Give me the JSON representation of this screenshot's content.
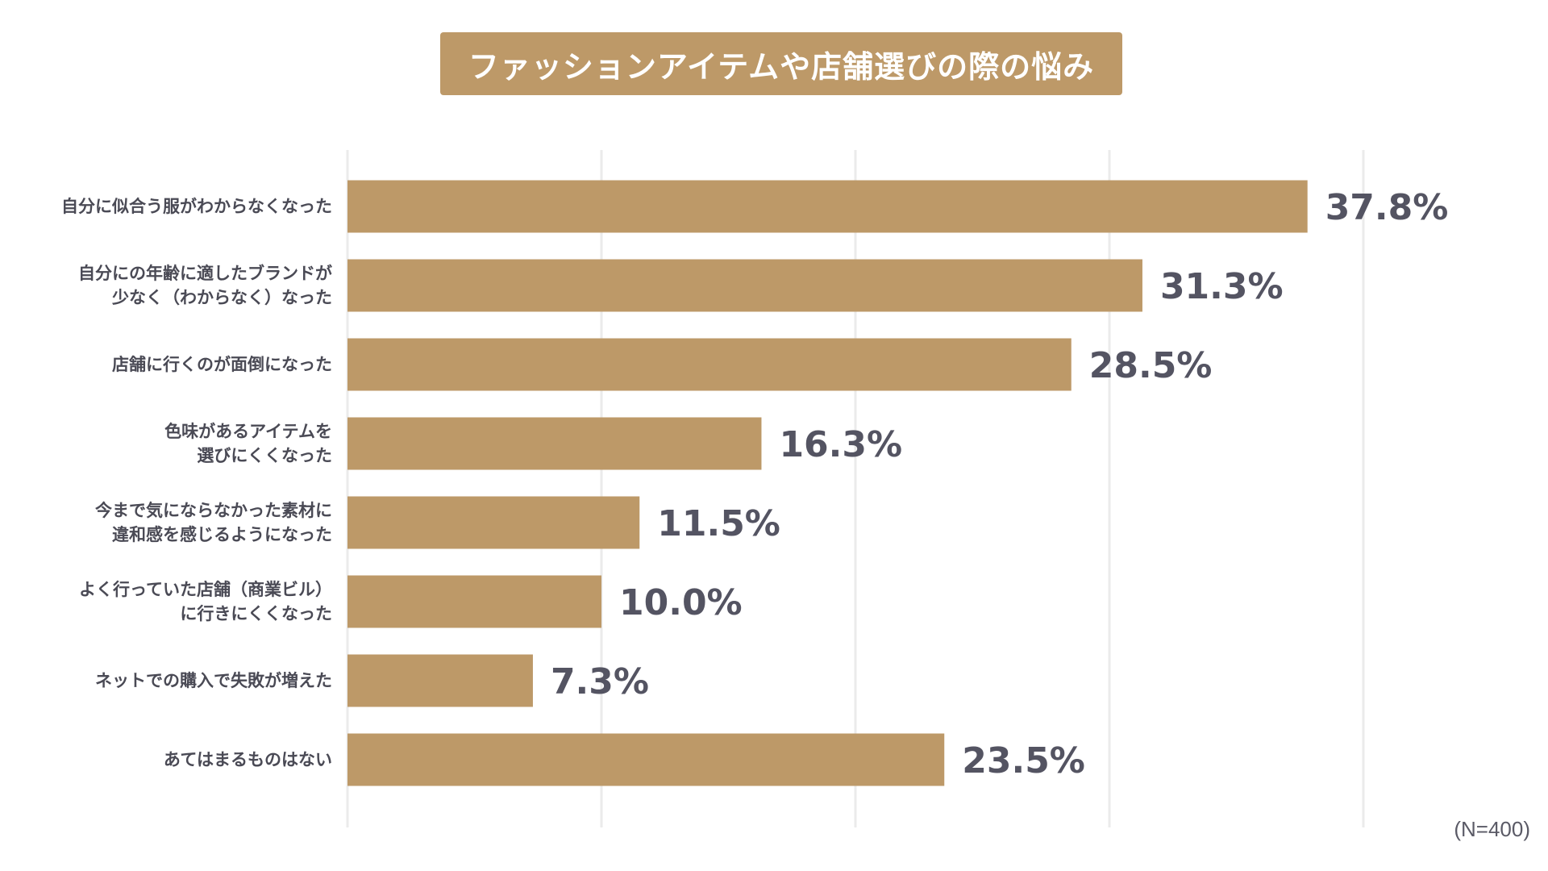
{
  "colors": {
    "bar": "#bd9968",
    "title_bg": "#bd9968",
    "grid": "#ebebeb",
    "label_text": "#4a4a55",
    "value_text": "#545462"
  },
  "chart_data": {
    "type": "bar",
    "orientation": "horizontal",
    "title": "ファッションアイテムや店舗選びの際の悩み",
    "note": "(N=400)",
    "xlim": [
      0,
      40
    ],
    "grid": true,
    "categories": [
      [
        "自分に似合う服がわからなくなった"
      ],
      [
        "自分にの年齢に適したブランドが",
        "少なく（わからなく）なった"
      ],
      [
        "店舗に行くのが面倒になった"
      ],
      [
        "色味があるアイテムを",
        "選びにくくなった"
      ],
      [
        "今まで気にならなかった素材に",
        "違和感を感じるようになった"
      ],
      [
        "よく行っていた店舗（商業ビル）",
        "に行きにくくなった"
      ],
      [
        "ネットでの購入で失敗が増えた"
      ],
      [
        "あてはまるものはない"
      ]
    ],
    "values": [
      37.8,
      31.3,
      28.5,
      16.3,
      11.5,
      10.0,
      7.3,
      23.5
    ],
    "value_labels": [
      "37.8%",
      "31.3%",
      "28.5%",
      "16.3%",
      "11.5%",
      "10.0%",
      "7.3%",
      "23.5%"
    ]
  }
}
